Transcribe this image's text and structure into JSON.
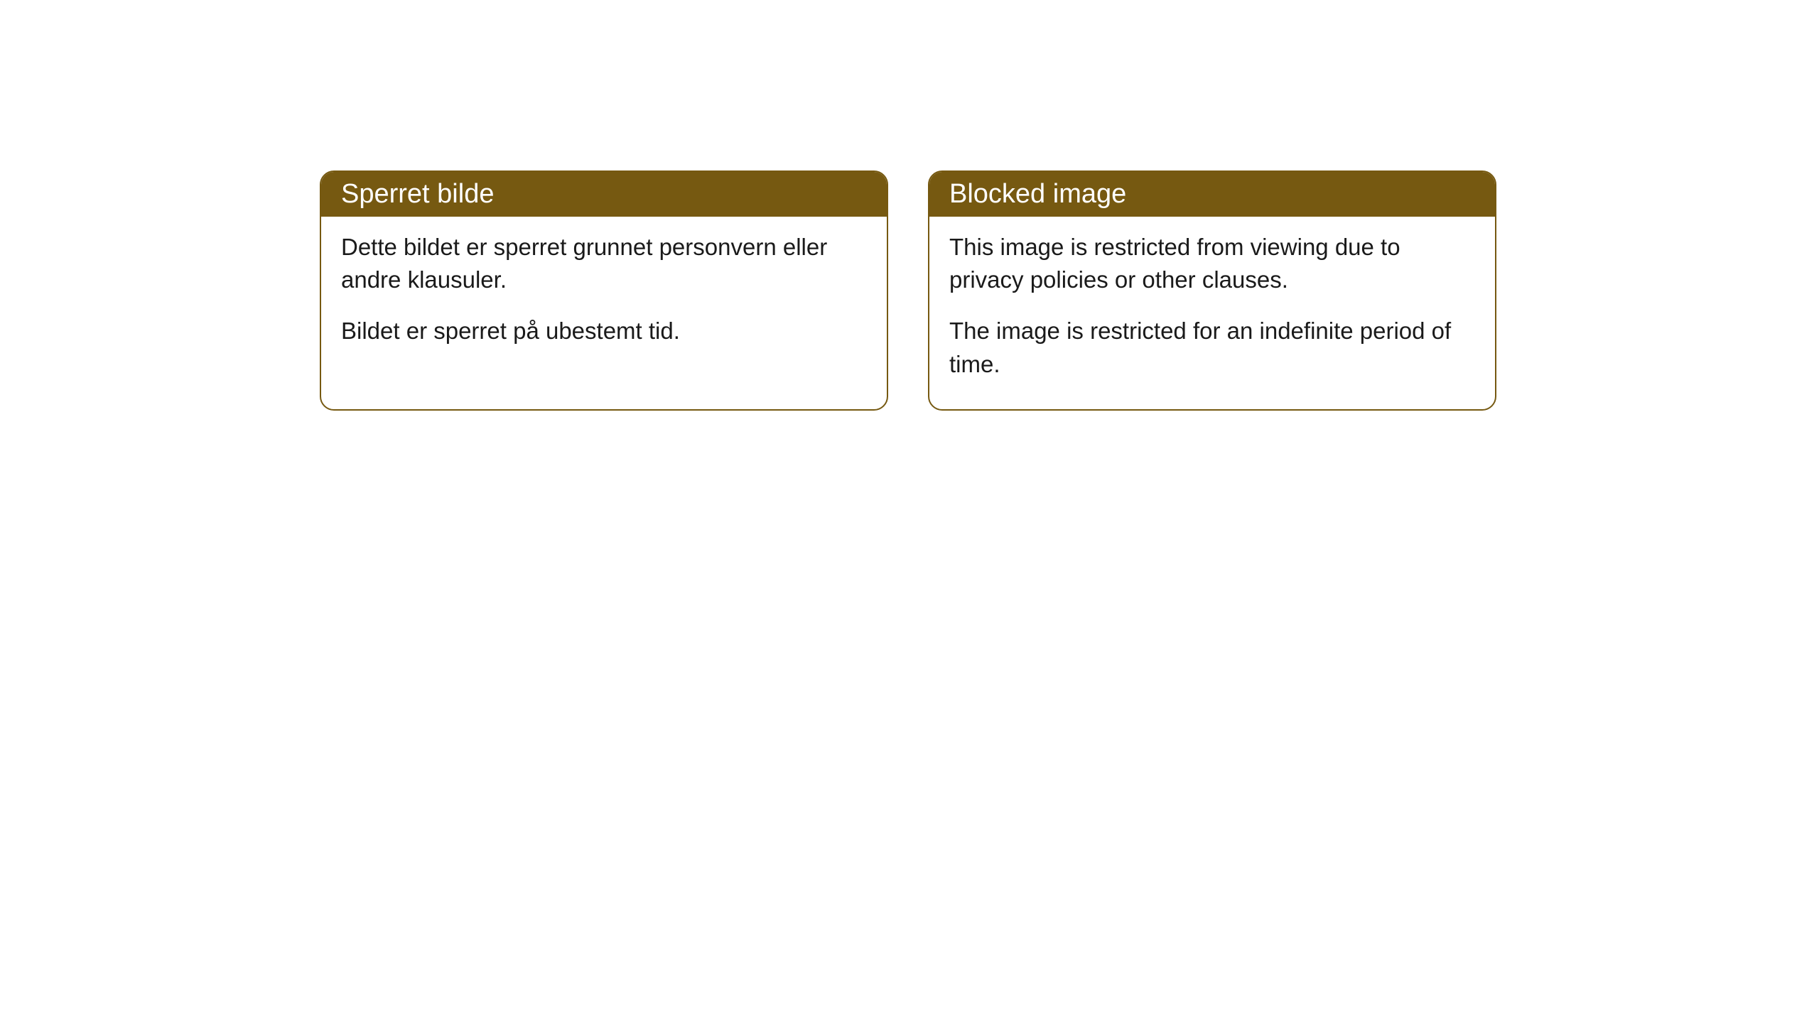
{
  "cards": [
    {
      "title": "Sperret bilde",
      "paragraph1": "Dette bildet er sperret grunnet personvern eller andre klausuler.",
      "paragraph2": "Bildet er sperret på ubestemt tid."
    },
    {
      "title": "Blocked image",
      "paragraph1": "This image is restricted from viewing due to privacy policies or other clauses.",
      "paragraph2": "The image is restricted for an indefinite period of time."
    }
  ],
  "styling": {
    "header_bg_color": "#765911",
    "header_text_color": "#ffffff",
    "border_color": "#765911",
    "body_bg_color": "#ffffff",
    "body_text_color": "#1a1a1a",
    "border_radius": "20px",
    "header_fontsize": "38px",
    "body_fontsize": "33px"
  }
}
